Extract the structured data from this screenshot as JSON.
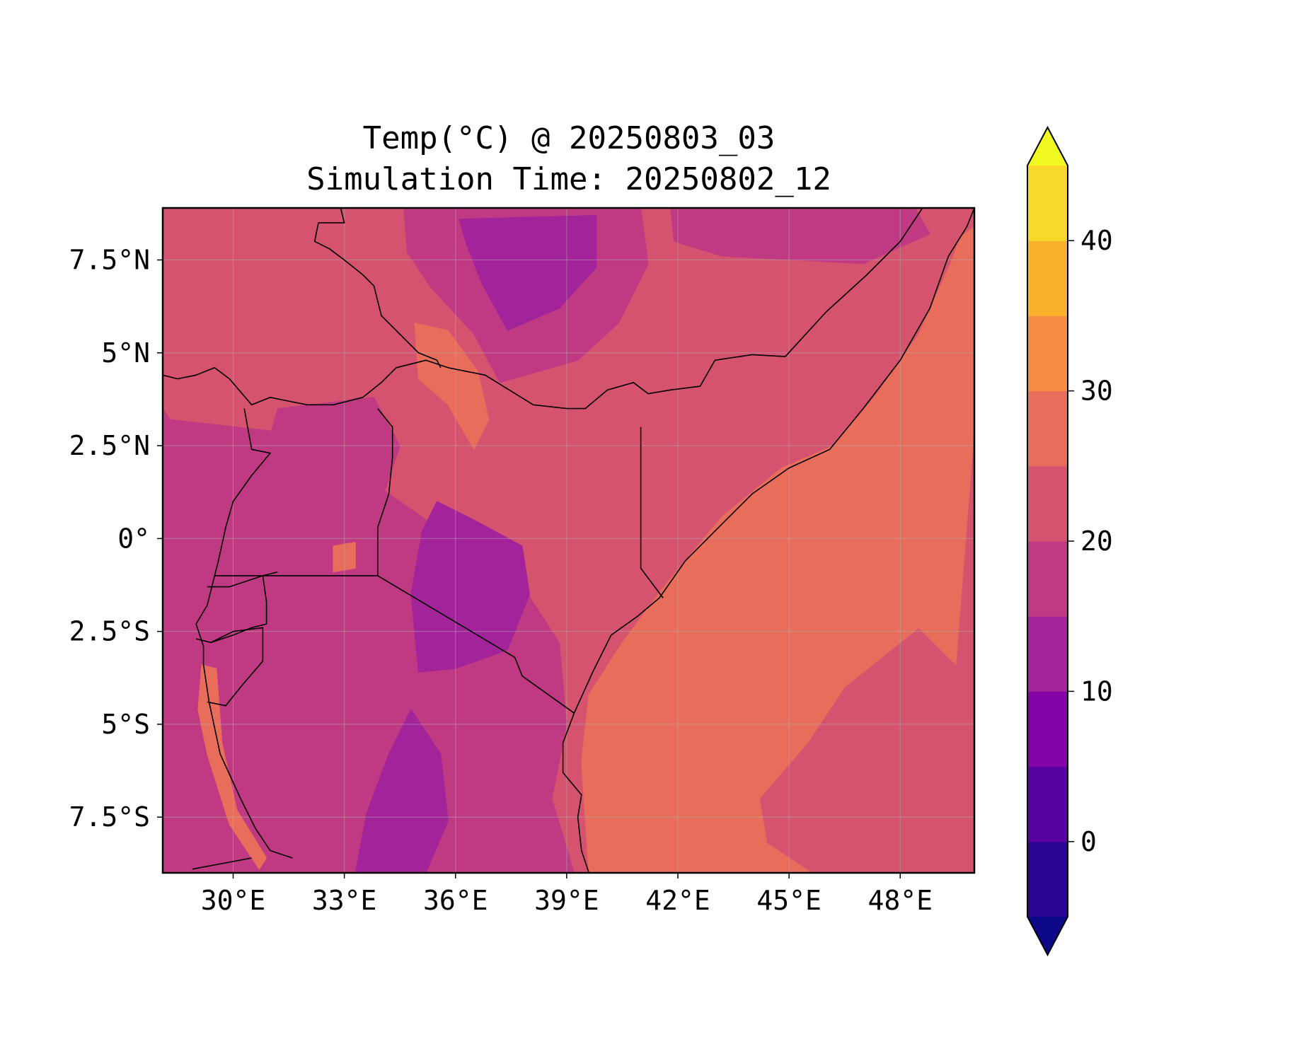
{
  "chart_data": {
    "type": "heatmap",
    "title_lines": [
      "Temp(°C) @ 20250803_03",
      "Simulation Time: 20250802_12"
    ],
    "x_ticks": [
      {
        "value": 30,
        "label": "30°E"
      },
      {
        "value": 33,
        "label": "33°E"
      },
      {
        "value": 36,
        "label": "36°E"
      },
      {
        "value": 39,
        "label": "39°E"
      },
      {
        "value": 42,
        "label": "42°E"
      },
      {
        "value": 45,
        "label": "45°E"
      },
      {
        "value": 48,
        "label": "48°E"
      }
    ],
    "y_ticks": [
      {
        "value": 7.5,
        "label": "7.5°N"
      },
      {
        "value": 5,
        "label": "5°N"
      },
      {
        "value": 2.5,
        "label": "2.5°N"
      },
      {
        "value": 0,
        "label": "0°"
      },
      {
        "value": -2.5,
        "label": "2.5°S"
      },
      {
        "value": -5,
        "label": "5°S"
      },
      {
        "value": -7.5,
        "label": "7.5°S"
      }
    ],
    "lon_range": [
      28.1,
      50.0
    ],
    "lat_range": [
      -9.0,
      8.9
    ],
    "grid": true,
    "colorbar": {
      "levels": [
        -5,
        0,
        5,
        10,
        15,
        20,
        25,
        30,
        35,
        40,
        45
      ],
      "colors": [
        "#2a0593",
        "#5802a4",
        "#8305a7",
        "#a3239a",
        "#c03a83",
        "#d5536f",
        "#e86d5b",
        "#f58e44",
        "#fcb12e",
        "#f8d929"
      ],
      "under_color": "#0d0887",
      "over_color": "#f0f921",
      "extend": "both",
      "ticks": [
        {
          "value": 0,
          "label": "0"
        },
        {
          "value": 10,
          "label": "10"
        },
        {
          "value": 20,
          "label": "20"
        },
        {
          "value": 30,
          "label": "30"
        },
        {
          "value": 40,
          "label": "40"
        }
      ]
    },
    "regions": [
      {
        "name": "base",
        "value": 22,
        "points": [
          [
            28.1,
            8.9
          ],
          [
            50,
            8.9
          ],
          [
            50,
            -9
          ],
          [
            28.1,
            -9
          ]
        ]
      },
      {
        "name": "ocean-warm",
        "value": 27,
        "points": [
          [
            49.6,
            8.1
          ],
          [
            50,
            8.4
          ],
          [
            50,
            3
          ],
          [
            49.5,
            -3.4
          ],
          [
            48.5,
            -2.4
          ],
          [
            46.5,
            -4
          ],
          [
            45.5,
            -5.5
          ],
          [
            44.2,
            -7
          ],
          [
            44.4,
            -8.2
          ],
          [
            45.6,
            -9
          ],
          [
            39.6,
            -9
          ],
          [
            39.4,
            -6
          ],
          [
            39.6,
            -4.2
          ],
          [
            40.5,
            -2.8
          ],
          [
            41.7,
            -1.2
          ],
          [
            43.2,
            0.6
          ],
          [
            44.8,
            1.9
          ],
          [
            46.2,
            2.5
          ],
          [
            47.3,
            3.8
          ],
          [
            48.5,
            5.5
          ],
          [
            49.4,
            7.5
          ]
        ]
      },
      {
        "name": "south-plateau-cool",
        "value": 17,
        "points": [
          [
            28.3,
            3.2
          ],
          [
            31,
            2.9
          ],
          [
            33.5,
            1.7
          ],
          [
            35.5,
            0.3
          ],
          [
            37.5,
            -0.8
          ],
          [
            38.8,
            -2.8
          ],
          [
            39,
            -5
          ],
          [
            38.6,
            -7
          ],
          [
            39.2,
            -9
          ],
          [
            28.1,
            -9
          ],
          [
            28.1,
            3.5
          ]
        ]
      },
      {
        "name": "uganda-plateau",
        "value": 19,
        "points": [
          [
            31.2,
            3.5
          ],
          [
            33.8,
            3.8
          ],
          [
            34.5,
            2.5
          ],
          [
            34,
            1
          ],
          [
            33.9,
            -1.1
          ],
          [
            31.5,
            -1
          ],
          [
            30.2,
            -0.2
          ],
          [
            30.3,
            1.2
          ],
          [
            30.9,
            2.4
          ]
        ]
      },
      {
        "name": "central-highlands",
        "value": 12,
        "points": [
          [
            35.5,
            1.0
          ],
          [
            36.5,
            0.5
          ],
          [
            37.8,
            -0.2
          ],
          [
            38,
            -1.5
          ],
          [
            37.4,
            -3
          ],
          [
            36,
            -3.5
          ],
          [
            35,
            -3.6
          ],
          [
            34.8,
            -1.5
          ],
          [
            35.1,
            0.2
          ]
        ]
      },
      {
        "name": "southern-highlands",
        "value": 12,
        "points": [
          [
            34.8,
            -4.6
          ],
          [
            35.6,
            -5.8
          ],
          [
            35.8,
            -7.6
          ],
          [
            35.2,
            -9
          ],
          [
            33.3,
            -9
          ],
          [
            33.6,
            -7.4
          ],
          [
            34.2,
            -5.8
          ]
        ]
      },
      {
        "name": "ethiopian-highlands",
        "value": 17,
        "points": [
          [
            34.6,
            8.9
          ],
          [
            41.0,
            8.9
          ],
          [
            41.2,
            7.4
          ],
          [
            40.4,
            5.8
          ],
          [
            39.3,
            4.8
          ],
          [
            37.2,
            4.2
          ],
          [
            36.5,
            5.5
          ],
          [
            35.3,
            6.8
          ],
          [
            34.7,
            7.7
          ]
        ]
      },
      {
        "name": "ethiopian-highlands-core",
        "value": 12,
        "points": [
          [
            36.1,
            8.6
          ],
          [
            39.8,
            8.7
          ],
          [
            39.8,
            7.3
          ],
          [
            38.8,
            6.2
          ],
          [
            37.4,
            5.6
          ],
          [
            36.7,
            6.9
          ],
          [
            36.3,
            7.9
          ]
        ]
      },
      {
        "name": "east-ethiopia-cool",
        "value": 17,
        "points": [
          [
            41.8,
            8.9
          ],
          [
            48.4,
            8.9
          ],
          [
            48.8,
            8.2
          ],
          [
            47,
            7.4
          ],
          [
            45.2,
            7.5
          ],
          [
            43.2,
            7.6
          ],
          [
            41.9,
            8.0
          ]
        ]
      },
      {
        "name": "turkana-warm",
        "value": 27,
        "points": [
          [
            34.9,
            5.8
          ],
          [
            35.8,
            5.6
          ],
          [
            36.6,
            4.5
          ],
          [
            36.9,
            3.2
          ],
          [
            36.5,
            2.4
          ],
          [
            35.8,
            3.6
          ],
          [
            35.0,
            4.3
          ]
        ]
      },
      {
        "name": "lake-victoria-warm",
        "value": 27,
        "points": [
          [
            32.7,
            -0.2
          ],
          [
            33.3,
            -0.1
          ],
          [
            33.3,
            -0.8
          ],
          [
            32.7,
            -0.9
          ]
        ]
      },
      {
        "name": "lake-tanganyika-warm",
        "value": 27,
        "points": [
          [
            29.15,
            -3.4
          ],
          [
            29.55,
            -3.5
          ],
          [
            29.7,
            -5.5
          ],
          [
            30.1,
            -7.3
          ],
          [
            30.9,
            -8.6
          ],
          [
            30.7,
            -8.9
          ],
          [
            29.9,
            -7.7
          ],
          [
            29.3,
            -5.8
          ],
          [
            29.05,
            -4.6
          ]
        ]
      }
    ],
    "borders": [
      [
        [
          28.1,
          4.4
        ],
        [
          28.5,
          4.3
        ],
        [
          29.0,
          4.4
        ],
        [
          29.5,
          4.6
        ],
        [
          29.9,
          4.3
        ],
        [
          30.5,
          3.6
        ],
        [
          31.0,
          3.8
        ],
        [
          31.5,
          3.7
        ],
        [
          32.0,
          3.6
        ],
        [
          32.7,
          3.6
        ],
        [
          33.5,
          3.8
        ],
        [
          34.0,
          4.2
        ],
        [
          34.4,
          4.6
        ],
        [
          35.2,
          4.8
        ],
        [
          35.8,
          4.6
        ],
        [
          36.8,
          4.4
        ],
        [
          38.1,
          3.6
        ],
        [
          39.0,
          3.5
        ],
        [
          39.5,
          3.5
        ],
        [
          40.1,
          4.0
        ],
        [
          40.8,
          4.2
        ],
        [
          41.2,
          3.9
        ],
        [
          41.8,
          4.0
        ],
        [
          42.6,
          4.1
        ],
        [
          43.0,
          4.8
        ],
        [
          44.0,
          4.95
        ],
        [
          44.9,
          4.9
        ],
        [
          46.0,
          6.1
        ],
        [
          47.1,
          7.1
        ],
        [
          48.0,
          8.0
        ],
        [
          48.6,
          8.9
        ]
      ],
      [
        [
          32.9,
          8.9
        ],
        [
          33.0,
          8.5
        ],
        [
          32.3,
          8.5
        ],
        [
          32.2,
          8.0
        ],
        [
          32.6,
          7.8
        ],
        [
          33.0,
          7.5
        ],
        [
          33.5,
          7.1
        ],
        [
          33.8,
          6.8
        ],
        [
          34.0,
          6.0
        ],
        [
          34.4,
          5.6
        ],
        [
          35.0,
          5.0
        ],
        [
          35.5,
          4.8
        ]
      ],
      [
        [
          35.5,
          4.8
        ],
        [
          35.6,
          4.6
        ]
      ],
      [
        [
          33.9,
          3.5
        ],
        [
          34.3,
          3.0
        ],
        [
          34.3,
          2.2
        ],
        [
          34.2,
          1.2
        ],
        [
          33.9,
          0.3
        ],
        [
          33.9,
          -1.0
        ]
      ],
      [
        [
          29.5,
          -1.0
        ],
        [
          30.8,
          -1.0
        ],
        [
          33.9,
          -1.0
        ],
        [
          37.6,
          -3.2
        ],
        [
          37.8,
          -3.7
        ],
        [
          39.2,
          -4.7
        ]
      ],
      [
        [
          41.0,
          3.0
        ],
        [
          41.0,
          -0.8
        ],
        [
          41.6,
          -1.6
        ]
      ],
      [
        [
          30.3,
          3.5
        ],
        [
          30.5,
          2.4
        ],
        [
          31.0,
          2.3
        ],
        [
          30.5,
          1.7
        ],
        [
          30.0,
          1.0
        ],
        [
          29.8,
          0.3
        ],
        [
          29.6,
          -0.6
        ],
        [
          29.5,
          -1.0
        ],
        [
          29.3,
          -1.8
        ],
        [
          29.0,
          -2.3
        ],
        [
          29.2,
          -2.9
        ],
        [
          29.2,
          -3.4
        ],
        [
          29.35,
          -4.4
        ],
        [
          29.65,
          -5.8
        ],
        [
          30.2,
          -7.0
        ],
        [
          30.6,
          -7.8
        ],
        [
          31.0,
          -8.4
        ],
        [
          31.6,
          -8.6
        ]
      ],
      [
        [
          28.9,
          -8.9
        ],
        [
          30.5,
          -8.6
        ]
      ],
      [
        [
          29.3,
          -1.3
        ],
        [
          29.9,
          -1.3
        ],
        [
          30.2,
          -1.2
        ],
        [
          30.8,
          -1.0
        ],
        [
          30.9,
          -1.7
        ],
        [
          30.9,
          -2.3
        ],
        [
          30.5,
          -2.4
        ],
        [
          30.0,
          -2.6
        ],
        [
          29.4,
          -2.8
        ],
        [
          29.0,
          -2.7
        ]
      ],
      [
        [
          29.4,
          -2.8
        ],
        [
          30.0,
          -2.5
        ],
        [
          30.8,
          -2.4
        ],
        [
          30.8,
          -3.3
        ],
        [
          30.2,
          -4.0
        ],
        [
          29.8,
          -4.5
        ],
        [
          29.3,
          -4.4
        ]
      ],
      [
        [
          30.8,
          -1.0
        ],
        [
          31.2,
          -0.9
        ]
      ],
      [
        [
          51.0,
          10.5
        ],
        [
          50.0,
          8.9
        ],
        [
          49.8,
          8.4
        ],
        [
          49.3,
          7.6
        ],
        [
          48.8,
          6.2
        ],
        [
          48.0,
          4.8
        ],
        [
          47.0,
          3.5
        ],
        [
          46.1,
          2.4
        ],
        [
          45.0,
          1.9
        ],
        [
          44.0,
          1.2
        ],
        [
          43.1,
          0.3
        ],
        [
          42.2,
          -0.6
        ],
        [
          41.5,
          -1.6
        ],
        [
          40.9,
          -2.1
        ],
        [
          40.2,
          -2.6
        ],
        [
          39.7,
          -3.6
        ],
        [
          39.2,
          -4.7
        ],
        [
          38.9,
          -5.5
        ],
        [
          38.9,
          -6.3
        ],
        [
          39.4,
          -6.9
        ],
        [
          39.3,
          -7.5
        ],
        [
          39.4,
          -8.4
        ],
        [
          39.6,
          -9.0
        ]
      ]
    ]
  }
}
